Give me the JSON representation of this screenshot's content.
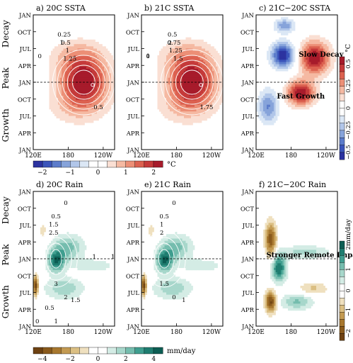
{
  "figure": {
    "panels": [
      {
        "id": "a",
        "title": "a) 20C SSTA",
        "kind": "sst",
        "var": "sst",
        "field": "20C",
        "contour_labels": [
          "0",
          "0.25",
          "0.5",
          "1",
          "1.25",
          "1",
          "0.5"
        ]
      },
      {
        "id": "b",
        "title": "b) 21C SSTA",
        "kind": "sst",
        "var": "sst",
        "field": "21C",
        "contour_labels": [
          "0",
          "0.5",
          "0.75",
          "1.25",
          "1.5",
          "2",
          "1.75",
          "1"
        ]
      },
      {
        "id": "c",
        "title": "c) 21C−20C SSTA",
        "kind": "sst",
        "var": "diff_sst",
        "field": "diff",
        "annotations": [
          "Slow Decay",
          "Fast Growth"
        ]
      },
      {
        "id": "d",
        "title": "d) 20C Rain",
        "kind": "rain",
        "var": "rain",
        "field": "20C",
        "contour_labels": [
          "0",
          "0.5",
          "1.5",
          "2.5",
          "3",
          "2",
          "1.5",
          "0.5",
          "0",
          "1",
          "1",
          "1"
        ]
      },
      {
        "id": "e",
        "title": "e) 21C Rain",
        "kind": "rain",
        "var": "rain",
        "field": "21C",
        "contour_labels": [
          "0",
          "0.5",
          "1",
          "2",
          "1.5",
          "0",
          "1"
        ]
      },
      {
        "id": "f",
        "title": "f) 21C−20C Rain",
        "kind": "rain",
        "var": "diff_rain",
        "field": "diff",
        "annotations": [
          "Stronger Remote Impact"
        ]
      }
    ],
    "y_ticks": [
      "JAN",
      "OCT",
      "JUL",
      "APR",
      "JAN",
      "OCT",
      "JUL",
      "APR",
      "JAN"
    ],
    "x_ticks": [
      "120E",
      "180",
      "120W"
    ],
    "phase_labels": [
      "Decay",
      "Peak",
      "Growth"
    ],
    "peak_line_label": "JAN",
    "colorbars": {
      "sst": {
        "ticks": [
          "−2",
          "−1",
          "0",
          "1",
          "2"
        ],
        "unit": "°C"
      },
      "rain": {
        "ticks": [
          "−4",
          "−2",
          "0",
          "2",
          "4"
        ],
        "unit": "mm/day"
      },
      "diff_sst": {
        "ticks": [
          "−0.5",
          "−0.25",
          "0",
          "0.25",
          "0.5"
        ],
        "unit": "°C"
      },
      "diff_rain": {
        "ticks": [
          "−2",
          "−1",
          "0",
          "1",
          "2"
        ],
        "unit": "mm/day"
      }
    },
    "colors": {
      "warm_max": "#b2182b",
      "cold_max": "#2c33a0",
      "wet_max": "#0d5e55",
      "dry_max": "#7a4b12"
    }
  },
  "chart_data": [
    {
      "type": "heatmap",
      "title": "a) 20C SSTA",
      "x_axis": "longitude",
      "x_ticks": [
        "120E",
        "180",
        "120W"
      ],
      "y_axis": "month relative to peak",
      "y_ticks": [
        "JAN",
        "OCT",
        "JUL",
        "APR",
        "JAN",
        "OCT",
        "JUL",
        "APR",
        "JAN"
      ],
      "range": [
        -2,
        2
      ],
      "unit": "°C",
      "peak": {
        "month": "JAN",
        "longitude": "160W",
        "value": 2
      }
    },
    {
      "type": "heatmap",
      "title": "b) 21C SSTA",
      "x_axis": "longitude",
      "range": [
        -2,
        2
      ],
      "unit": "°C",
      "peak": {
        "month": "JAN",
        "longitude": "170W",
        "value": 2
      }
    },
    {
      "type": "heatmap",
      "title": "c) 21C−20C SSTA",
      "x_axis": "longitude",
      "range": [
        -0.5,
        0.5
      ],
      "unit": "°C",
      "annotations": [
        "Slow Decay",
        "Fast Growth"
      ]
    },
    {
      "type": "heatmap",
      "title": "d) 20C Rain",
      "x_axis": "longitude",
      "range": [
        -4,
        4
      ],
      "unit": "mm/day",
      "peak": {
        "month": "JAN",
        "longitude": "170E",
        "value": 3
      }
    },
    {
      "type": "heatmap",
      "title": "e) 21C Rain",
      "x_axis": "longitude",
      "range": [
        -4,
        4
      ],
      "unit": "mm/day",
      "peak": {
        "month": "JAN",
        "longitude": "170W",
        "value": 2.5
      }
    },
    {
      "type": "heatmap",
      "title": "f) 21C−20C Rain",
      "x_axis": "longitude",
      "range": [
        -2,
        2
      ],
      "unit": "mm/day",
      "annotations": [
        "Stronger Remote Impact"
      ]
    }
  ]
}
